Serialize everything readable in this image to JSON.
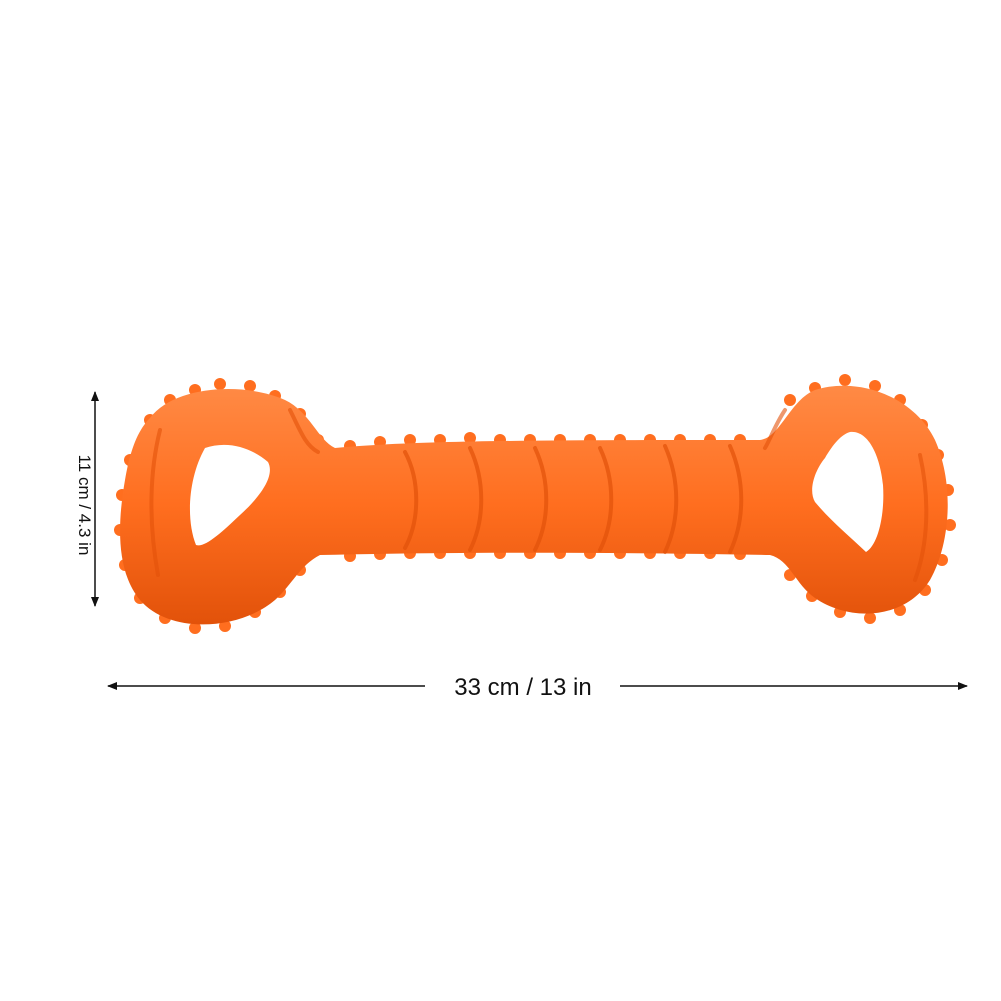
{
  "product": {
    "name_icon": "orange-bone-chew-toy",
    "color": "#FF6E1F",
    "color_shadow": "#E2520A",
    "color_highlight": "#FF8A45"
  },
  "dimensions": {
    "width_label": "33 cm / 13 in",
    "height_label": "11 cm / 4.3 in",
    "line_color": "#111111"
  }
}
